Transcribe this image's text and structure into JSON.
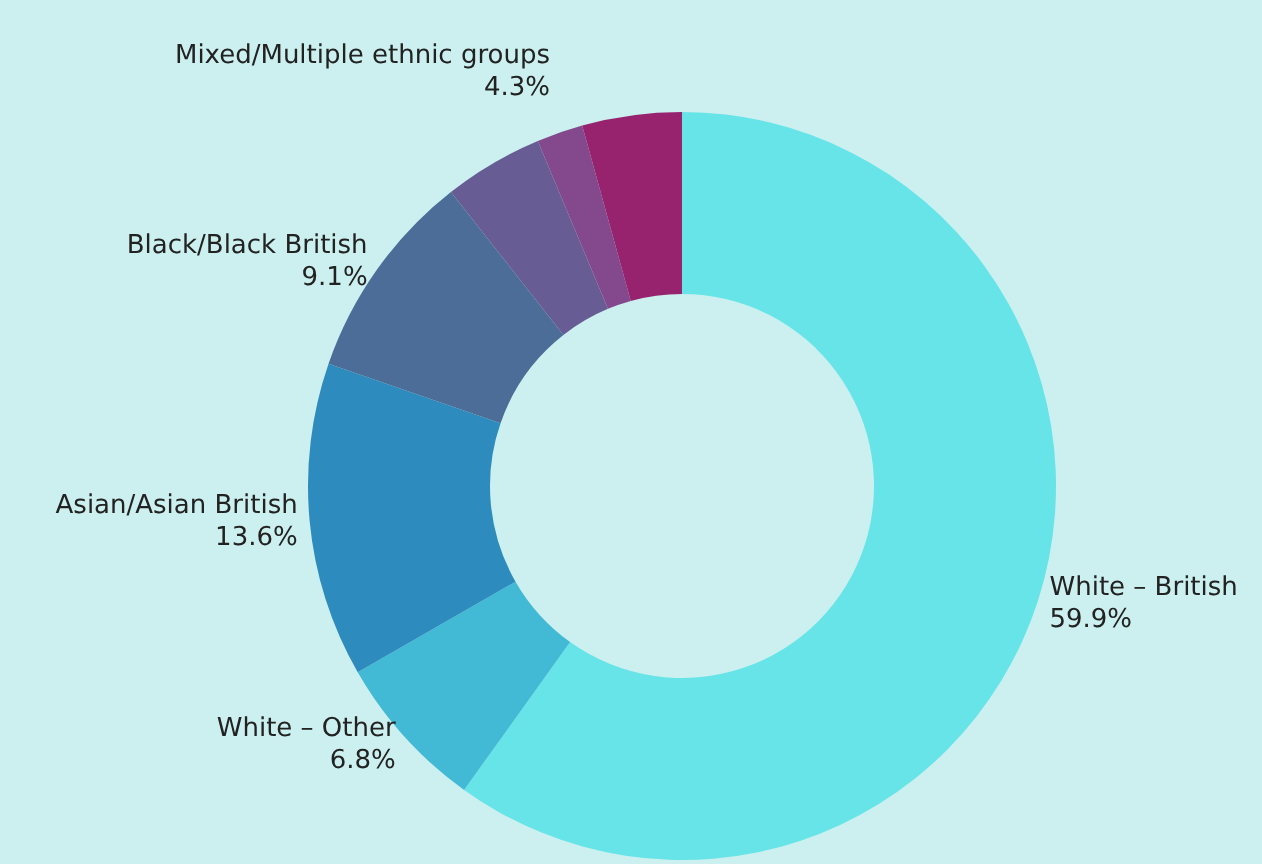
{
  "chart_data": {
    "type": "donut",
    "categories": [
      "White – British",
      "White – Other",
      "Asian/Asian British",
      "Black/Black British",
      null,
      null,
      "Mixed/Multiple ethnic groups"
    ],
    "values": [
      59.9,
      6.8,
      13.6,
      9.1,
      4.3,
      2.0,
      4.3
    ],
    "colors": [
      "#67e4e8",
      "#42b9d5",
      "#2e8bbd",
      "#4b6d98",
      "#675c94",
      "#84498c",
      "#97236f"
    ],
    "value_labels": [
      "59.9%",
      "6.8%",
      "13.6%",
      "9.1%",
      null,
      null,
      "4.3%"
    ],
    "legend": false
  }
}
